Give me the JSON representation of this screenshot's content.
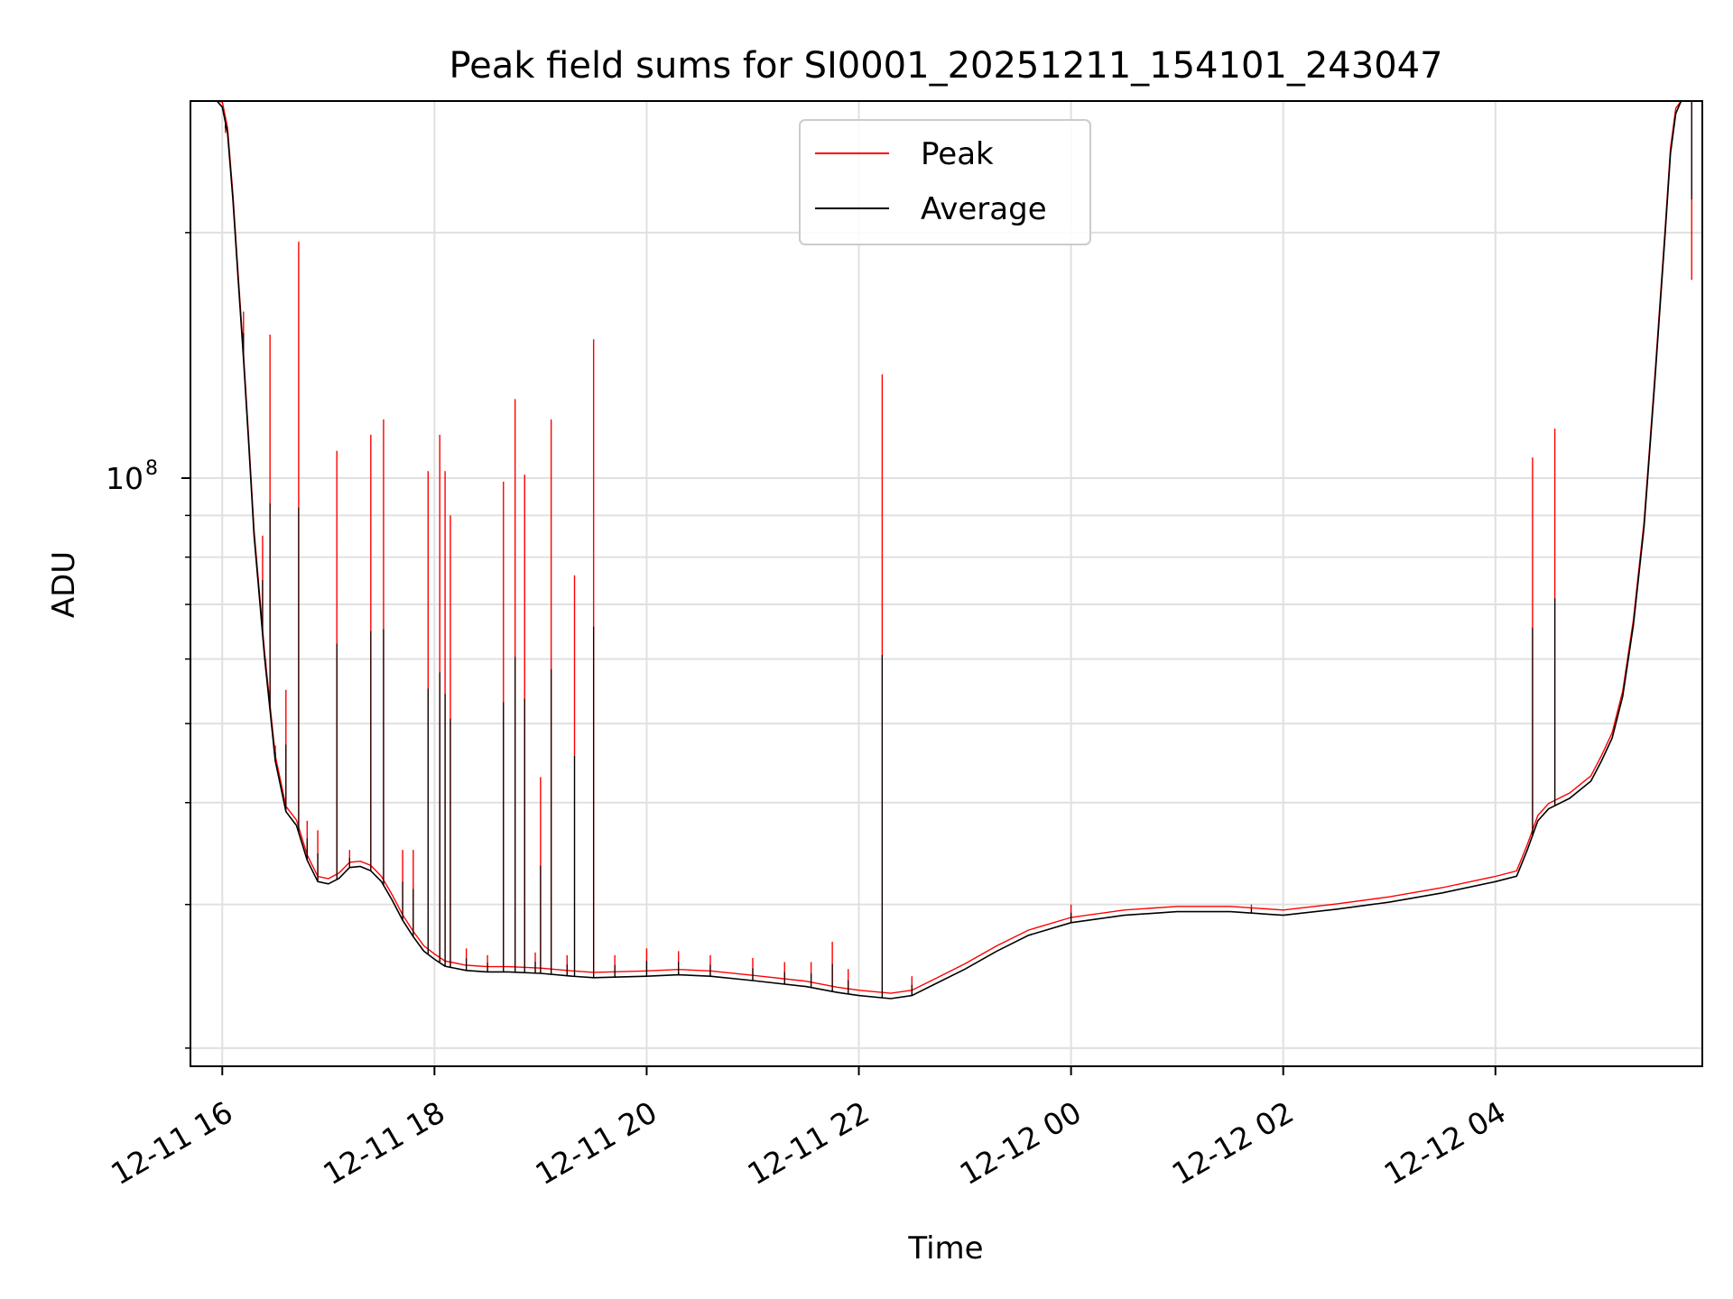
{
  "chart_data": {
    "type": "line",
    "title": "Peak field sums for SI0001_20251211_154101_243047",
    "xlabel": "Time",
    "ylabel": "ADU",
    "yscale": "log",
    "grid": true,
    "legend_position": "top-center",
    "colors": {
      "peak": "#ff0000",
      "average": "#000000",
      "grid": "#e0e0e0"
    },
    "x_unit": "hours since 2025-12-11 16:00",
    "xlim": [
      -0.3,
      13.95
    ],
    "ylim": [
      19000000,
      290000000
    ],
    "x_ticks": [
      {
        "value": 0,
        "label": "12-11 16"
      },
      {
        "value": 2,
        "label": "12-11 18"
      },
      {
        "value": 4,
        "label": "12-11 20"
      },
      {
        "value": 6,
        "label": "12-11 22"
      },
      {
        "value": 8,
        "label": "12-12 00"
      },
      {
        "value": 10,
        "label": "12-12 02"
      },
      {
        "value": 12,
        "label": "12-12 04"
      }
    ],
    "y_major_tick": {
      "value": 100000000,
      "label_base": "10",
      "label_exp": "8"
    },
    "y_minor_ticks": [
      20000000,
      30000000,
      40000000,
      50000000,
      60000000,
      70000000,
      80000000,
      90000000,
      200000000
    ],
    "series": [
      {
        "name": "Average",
        "x": [
          -0.3,
          -0.05,
          0.0,
          0.05,
          0.1,
          0.15,
          0.2,
          0.25,
          0.3,
          0.4,
          0.5,
          0.6,
          0.7,
          0.8,
          0.9,
          1.0,
          1.1,
          1.2,
          1.3,
          1.4,
          1.5,
          1.6,
          1.7,
          1.8,
          1.9,
          2.0,
          2.1,
          2.3,
          2.5,
          2.7,
          3.0,
          3.3,
          3.5,
          4.0,
          4.3,
          4.6,
          5.0,
          5.5,
          5.8,
          6.0,
          6.3,
          6.5,
          6.7,
          7.0,
          7.3,
          7.6,
          8.0,
          8.5,
          9.0,
          9.5,
          10.0,
          10.5,
          11.0,
          11.5,
          12.0,
          12.2,
          12.3,
          12.4,
          12.5,
          12.7,
          12.9,
          13.0,
          13.1,
          13.2,
          13.3,
          13.4,
          13.5,
          13.6,
          13.65,
          13.7,
          13.75,
          13.8,
          13.95
        ],
        "values": [
          290000000,
          290000000,
          285000000,
          265000000,
          220000000,
          175000000,
          140000000,
          110000000,
          85000000,
          60000000,
          45000000,
          39000000,
          37500000,
          34000000,
          32000000,
          31800000,
          32300000,
          33300000,
          33400000,
          33000000,
          32000000,
          30400000,
          28700000,
          27400000,
          26300000,
          25700000,
          25200000,
          24900000,
          24800000,
          24800000,
          24700000,
          24500000,
          24400000,
          24500000,
          24600000,
          24500000,
          24200000,
          23800000,
          23400000,
          23200000,
          23000000,
          23200000,
          23900000,
          25000000,
          26300000,
          27500000,
          28500000,
          29100000,
          29400000,
          29400000,
          29100000,
          29600000,
          30200000,
          31000000,
          32000000,
          32500000,
          35000000,
          38000000,
          39300000,
          40500000,
          42500000,
          45000000,
          48000000,
          54000000,
          66000000,
          87000000,
          130000000,
          200000000,
          250000000,
          280000000,
          290000000,
          290000000,
          290000000
        ]
      },
      {
        "name": "Peak",
        "spikes": [
          [
            0.03,
            265000000
          ],
          [
            0.2,
            160000000
          ],
          [
            0.38,
            85000000
          ],
          [
            0.41,
            60000000
          ],
          [
            0.45,
            150000000
          ],
          [
            0.5,
            47000000
          ],
          [
            0.6,
            55000000
          ],
          [
            0.72,
            195000000
          ],
          [
            0.8,
            38000000
          ],
          [
            0.9,
            37000000
          ],
          [
            1.08,
            108000000
          ],
          [
            1.2,
            35000000
          ],
          [
            1.4,
            113000000
          ],
          [
            1.52,
            118000000
          ],
          [
            1.7,
            35000000
          ],
          [
            1.8,
            35000000
          ],
          [
            1.94,
            102000000
          ],
          [
            2.05,
            113000000
          ],
          [
            2.1,
            102000000
          ],
          [
            2.15,
            90000000
          ],
          [
            2.3,
            26500000
          ],
          [
            2.5,
            26000000
          ],
          [
            2.65,
            99000000
          ],
          [
            2.76,
            125000000
          ],
          [
            2.85,
            101000000
          ],
          [
            2.95,
            26200000
          ],
          [
            3.0,
            43000000
          ],
          [
            3.1,
            118000000
          ],
          [
            3.25,
            26000000
          ],
          [
            3.32,
            76000000
          ],
          [
            3.5,
            148000000
          ],
          [
            3.7,
            26000000
          ],
          [
            4.0,
            26500000
          ],
          [
            4.3,
            26300000
          ],
          [
            4.6,
            26000000
          ],
          [
            5.0,
            25800000
          ],
          [
            5.3,
            25500000
          ],
          [
            5.55,
            25500000
          ],
          [
            5.75,
            27000000
          ],
          [
            5.9,
            25000000
          ],
          [
            6.22,
            134000000
          ],
          [
            6.5,
            24500000
          ],
          [
            8.0,
            30000000
          ],
          [
            9.7,
            30000000
          ],
          [
            12.35,
            106000000
          ],
          [
            12.56,
            115000000
          ],
          [
            13.5,
            130000000
          ],
          [
            13.85,
            175000000
          ]
        ]
      }
    ]
  },
  "legend": {
    "peak_label": "Peak",
    "average_label": "Average"
  }
}
